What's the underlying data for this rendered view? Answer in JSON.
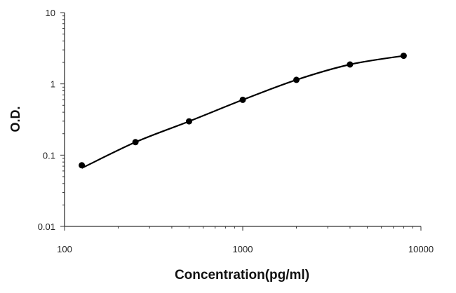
{
  "chart_data": {
    "type": "scatter",
    "title": "",
    "xlabel": "Concentration(pg/ml)",
    "ylabel": "O.D.",
    "x_scale": "log",
    "y_scale": "log",
    "xlim": [
      100,
      10000
    ],
    "ylim": [
      0.01,
      10
    ],
    "x_ticks": [
      "100",
      "1000",
      "10000"
    ],
    "y_ticks": [
      "10",
      "1",
      "0.1",
      "0.01"
    ],
    "grid": false,
    "legend": "none",
    "series": [
      {
        "x": [
          125,
          250,
          500,
          1000,
          2000,
          4000,
          8000
        ],
        "y": [
          0.072,
          0.152,
          0.298,
          0.597,
          1.14,
          1.87,
          2.48
        ],
        "marker": "circle",
        "line": "smooth-fit",
        "color": "#000000"
      }
    ]
  }
}
